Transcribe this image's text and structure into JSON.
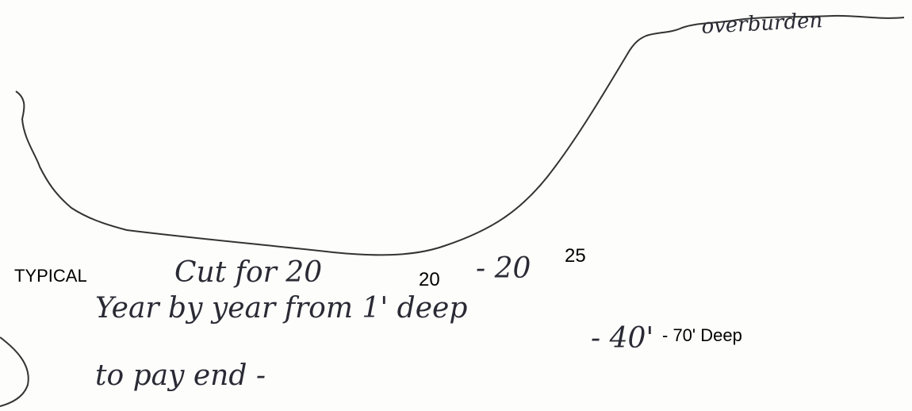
{
  "sketch_label": "overburden",
  "notes": {
    "typed_label": "TYPICAL",
    "line1": {
      "handwritten": "Cut for 20",
      "typed_year_start": "20",
      "handwritten_dash": "- 20",
      "typed_year_end": "25"
    },
    "line2": "Year by year from 1' deep",
    "line3": {
      "handwritten": "- 40'",
      "typed": "- 70' Deep"
    },
    "line4": "to pay end -"
  }
}
